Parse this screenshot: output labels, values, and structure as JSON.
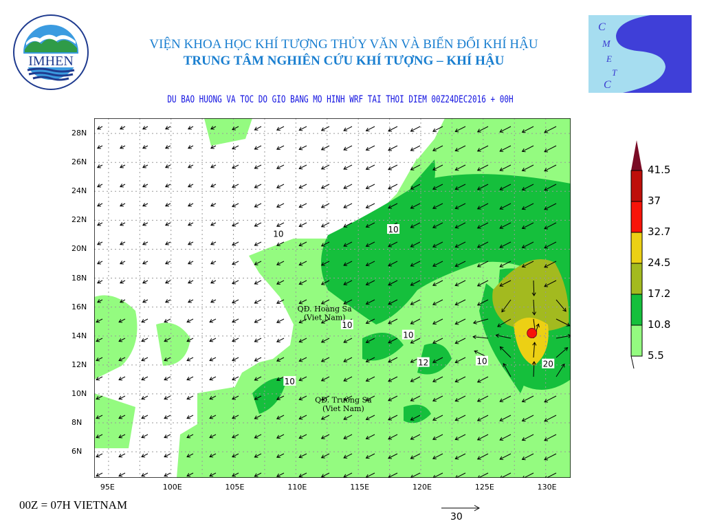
{
  "header": {
    "title_line1": "VIỆN KHOA HỌC KHÍ TƯỢNG THỦY VĂN VÀ BIẾN ĐỔI KHÍ HẬU",
    "title_line2": "TRUNG TÂM NGHIÊN CỨU KHÍ TƯỢNG – KHÍ HẬU",
    "subtitle": "DU BAO HUONG VA TOC DO GIO BANG MO HINH WRF TAI THOI DIEM  00Z24DEC2016 + 00H"
  },
  "logos": {
    "left": {
      "text": "IMHEN",
      "ring_text": "VIEN KHOA HOC KHI TUONG THUY VAN VA BIEN DOI KHI HAU"
    },
    "right": {
      "text": "CMETC"
    }
  },
  "map": {
    "lon_ticks": [
      "95E",
      "100E",
      "105E",
      "110E",
      "115E",
      "120E",
      "125E",
      "130E"
    ],
    "lon_values": [
      95,
      100,
      105,
      110,
      115,
      120,
      125,
      130
    ],
    "lat_ticks": [
      "28N",
      "26N",
      "24N",
      "22N",
      "20N",
      "18N",
      "16N",
      "14N",
      "12N",
      "10N",
      "8N",
      "6N"
    ],
    "lat_values": [
      28,
      26,
      24,
      22,
      20,
      18,
      16,
      14,
      12,
      10,
      8,
      6
    ],
    "extent": {
      "lon": [
        93.85,
        132.0
      ],
      "lat": [
        4.2,
        29.05
      ]
    },
    "labels": [
      {
        "text": "QĐ. Hoàng Sa",
        "lon": 112.3,
        "lat": 15.7
      },
      {
        "text": "(Viet Nam)",
        "lon": 112.3,
        "lat": 15.1
      },
      {
        "text": "QĐ. Trường Sa",
        "lon": 113.8,
        "lat": 9.4
      },
      {
        "text": "(Viet Nam)",
        "lon": 113.8,
        "lat": 8.8
      }
    ],
    "contour_labels": [
      {
        "text": "10",
        "lon": 108.6,
        "lat": 21.1
      },
      {
        "text": "10",
        "lon": 117.8,
        "lat": 21.4
      },
      {
        "text": "10",
        "lon": 114.1,
        "lat": 14.8
      },
      {
        "text": "10",
        "lon": 119.0,
        "lat": 14.1
      },
      {
        "text": "12",
        "lon": 120.2,
        "lat": 12.2
      },
      {
        "text": "10",
        "lon": 124.9,
        "lat": 12.3
      },
      {
        "text": "10",
        "lon": 109.5,
        "lat": 10.9
      },
      {
        "text": "20",
        "lon": 130.2,
        "lat": 12.1
      }
    ],
    "vortex_center": {
      "lon": 128.9,
      "lat": 14.2
    }
  },
  "colorbar": {
    "levels": [
      "41.5",
      "37",
      "32.7",
      "24.5",
      "17.2",
      "10.8",
      "5.5"
    ],
    "colors": [
      "#7a0c26",
      "#be0f0a",
      "#f71409",
      "#ecd014",
      "#a3ba1f",
      "#15bf3c",
      "#94fb80"
    ]
  },
  "reference_vector": {
    "value": "30"
  },
  "footer": {
    "text": "00Z = 07H VIETNAM"
  }
}
